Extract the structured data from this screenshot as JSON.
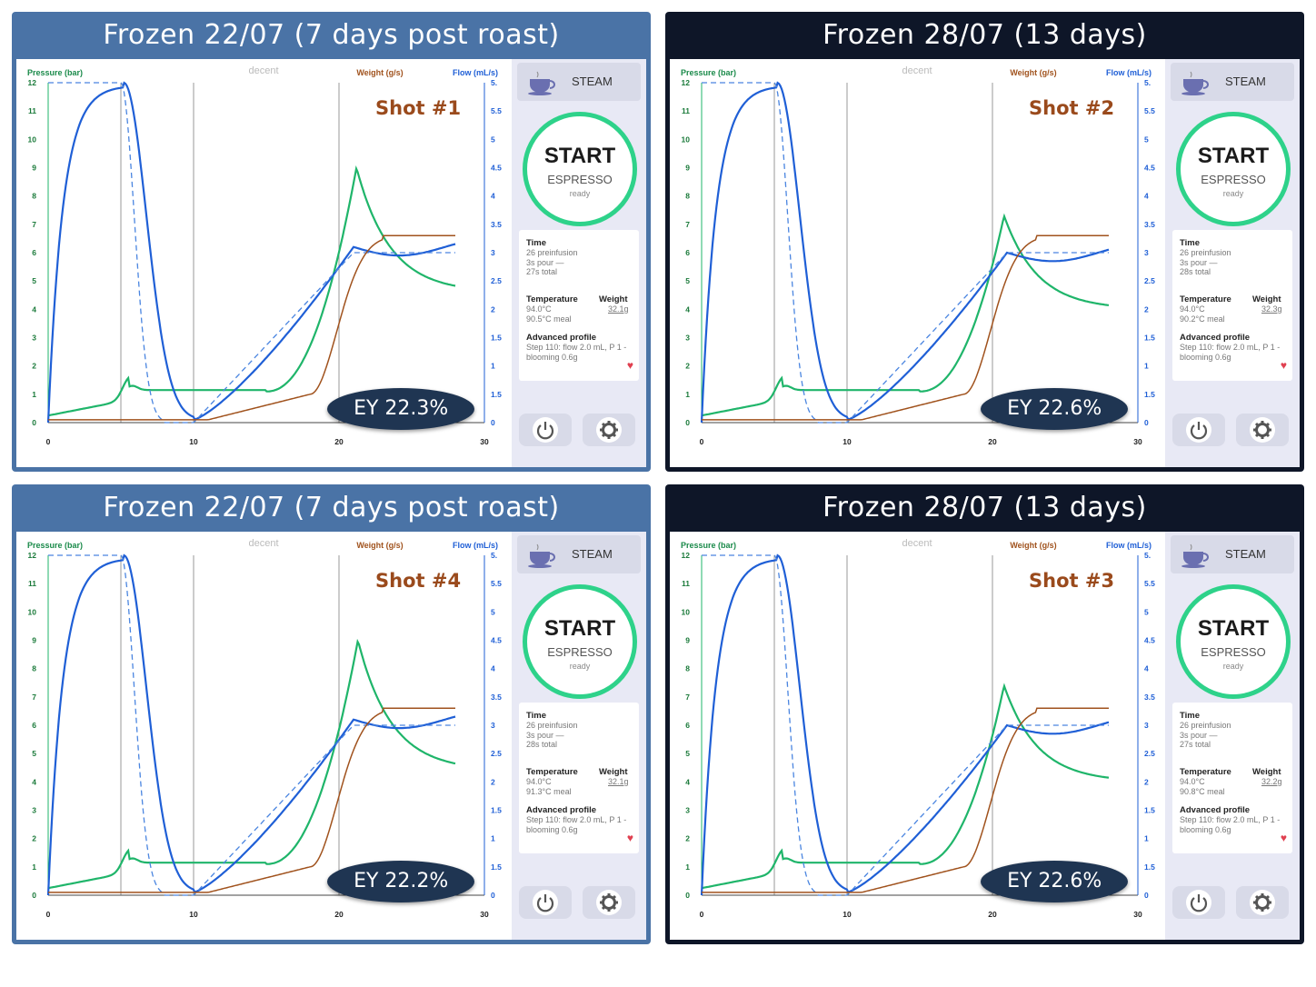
{
  "panels": [
    {
      "title": "Frozen 22/07 (7 days post roast)",
      "theme": "blue",
      "shot_label": "Shot #1",
      "ey": "EY 22.3%",
      "time_label": "Time",
      "time_lines": "26 preinfusion\n3s pour —\n27s total",
      "temperature_label": "Temperature",
      "temperature_lines": "94.0°C\n90.5°C meal",
      "weight_label": "Weight",
      "weight_value": "32.1g",
      "profile_label": "Advanced profile",
      "profile_lines": "Step 110: flow 2.0 mL, P 1 -\nblooming 0.6g",
      "pressure_peak": 9.0,
      "pressure_peak_time": 21.2,
      "pressure_end": 4.6,
      "flow_peak": 3.1,
      "weight_end": 3.3
    },
    {
      "title": "Frozen 28/07 (13 days)",
      "theme": "dark",
      "shot_label": "Shot #2",
      "ey": "EY 22.6%",
      "time_label": "Time",
      "time_lines": "26 preinfusion\n3s pour —\n28s total",
      "temperature_label": "Temperature",
      "temperature_lines": "94.0°C\n90.2°C meal",
      "weight_label": "Weight",
      "weight_value": "32.3g",
      "profile_label": "Advanced profile",
      "profile_lines": "Step 110: flow 2.0 mL, P 1 -\nblooming 0.6g",
      "pressure_peak": 7.3,
      "pressure_peak_time": 20.8,
      "pressure_end": 4.0,
      "flow_peak": 3.0,
      "weight_end": 3.3
    },
    {
      "title": "Frozen 22/07 (7 days post roast)",
      "theme": "blue",
      "shot_label": "Shot #4",
      "ey": "EY 22.2%",
      "time_label": "Time",
      "time_lines": "26 preinfusion\n3s pour —\n28s total",
      "temperature_label": "Temperature",
      "temperature_lines": "94.0°C\n91.3°C meal",
      "weight_label": "Weight",
      "weight_value": "32.1g",
      "profile_label": "Advanced profile",
      "profile_lines": "Step 110: flow 2.0 mL, P 1 -\nblooming 0.6g",
      "pressure_peak": 9.0,
      "pressure_peak_time": 21.3,
      "pressure_end": 4.4,
      "flow_peak": 3.1,
      "weight_end": 3.3
    },
    {
      "title": "Frozen 28/07 (13 days)",
      "theme": "dark",
      "shot_label": "Shot #3",
      "ey": "EY 22.6%",
      "time_label": "Time",
      "time_lines": "26 preinfusion\n3s pour —\n27s total",
      "temperature_label": "Temperature",
      "temperature_lines": "94.0°C\n90.8°C meal",
      "weight_label": "Weight",
      "weight_value": "32.2g",
      "profile_label": "Advanced profile",
      "profile_lines": "Step 110: flow 2.0 mL, P 1 -\nblooming 0.6g",
      "pressure_peak": 7.4,
      "pressure_peak_time": 20.8,
      "pressure_end": 4.0,
      "flow_peak": 3.0,
      "weight_end": 3.3
    }
  ],
  "chart": {
    "pressure_axis_label": "Pressure (bar)",
    "weight_axis_label": "Weight (g/s)",
    "flow_axis_label": "Flow (mL/s)",
    "brand": "decent",
    "pressure_ticks": [
      "0",
      "1",
      "2",
      "3",
      "4",
      "5",
      "6",
      "7",
      "8",
      "9",
      "10",
      "11",
      "12"
    ],
    "flow_ticks": [
      "0",
      "1.5",
      "1",
      "1.5",
      "2",
      "2.5",
      "3",
      "3.5",
      "4",
      "4.5",
      "5",
      "5.5",
      "5."
    ],
    "x_ticks": [
      "0",
      "10",
      "20",
      "30"
    ],
    "x_range": [
      0,
      30
    ],
    "pressure_range": [
      0,
      12
    ],
    "flow_range": [
      0,
      6
    ],
    "colors": {
      "pressure": "#1fb56a",
      "flow": "#1f5fd6",
      "weight": "#a0521d",
      "start_ring": "#2ed28a"
    }
  },
  "side": {
    "steam_label": "STEAM",
    "start_label": "START",
    "espresso_label": "ESPRESSO",
    "ready_label": "ready"
  },
  "icons": {
    "cup": "cup-icon",
    "power": "power-icon",
    "settings": "gear-icon",
    "favorite": "heart-icon"
  }
}
